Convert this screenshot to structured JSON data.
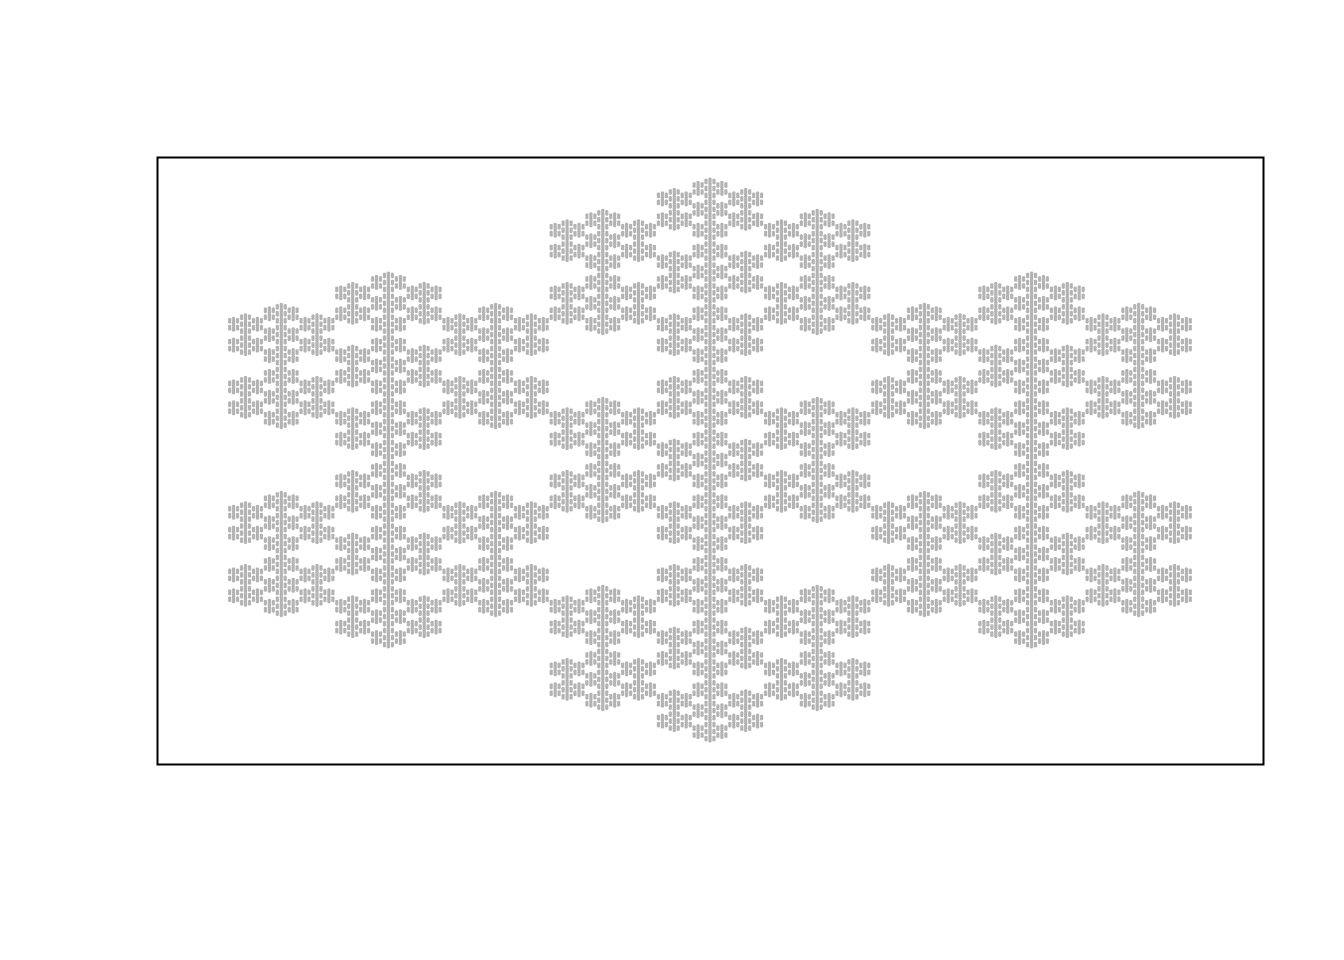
{
  "chart_data": {
    "type": "scatter",
    "color": "#b3b3b3"
  }
}
